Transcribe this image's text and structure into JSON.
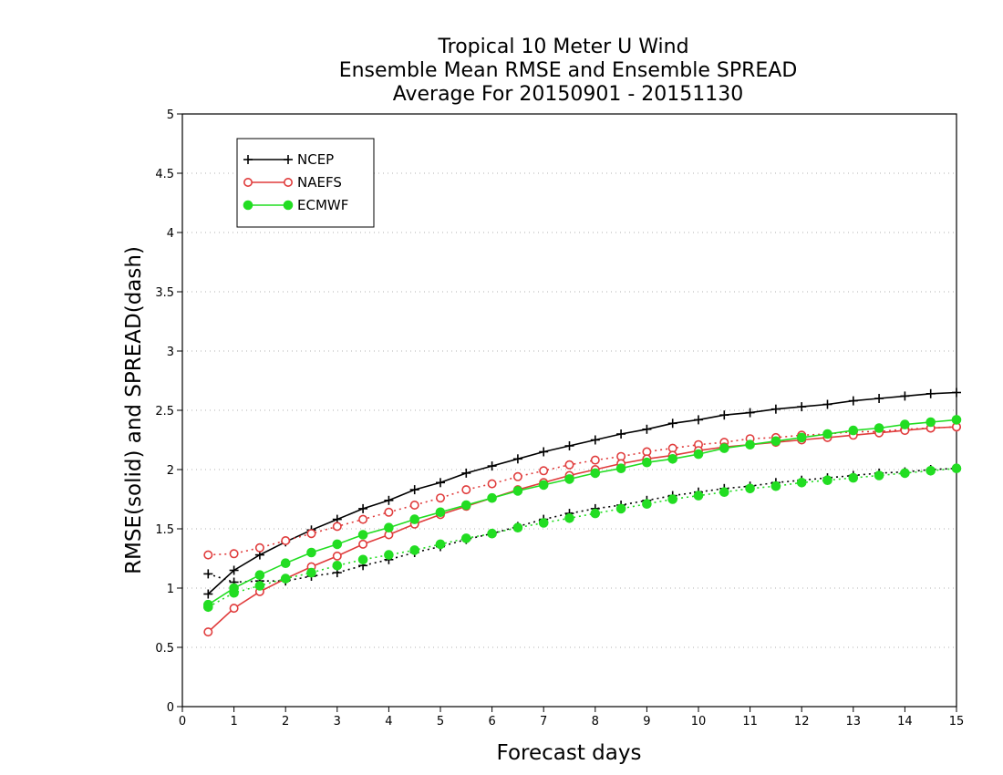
{
  "chart_data": {
    "type": "line",
    "title_lines": [
      "Tropical 10 Meter U Wind",
      "Ensemble Mean RMSE and Ensemble SPREAD",
      "Average For 20150901 - 20151130"
    ],
    "xlabel": "Forecast days",
    "ylabel": "RMSE(solid) and SPREAD(dash)",
    "xlim": [
      0,
      15
    ],
    "ylim": [
      0,
      5
    ],
    "xticks": [
      "0",
      "1",
      "2",
      "3",
      "4",
      "5",
      "6",
      "7",
      "8",
      "9",
      "10",
      "11",
      "12",
      "13",
      "14",
      "15"
    ],
    "yticks": [
      "0",
      "0.5",
      "1",
      "1.5",
      "2",
      "2.5",
      "3",
      "3.5",
      "4",
      "4.5",
      "5"
    ],
    "grid": true,
    "legend_position": "top-left",
    "x": [
      0.5,
      1,
      1.5,
      2,
      2.5,
      3,
      3.5,
      4,
      4.5,
      5,
      5.5,
      6,
      6.5,
      7,
      7.5,
      8,
      8.5,
      9,
      9.5,
      10,
      10.5,
      11,
      11.5,
      12,
      12.5,
      13,
      13.5,
      14,
      14.5,
      15
    ],
    "series": [
      {
        "name": "NCEP",
        "color": "#000000",
        "marker": "plus",
        "rmse": [
          0.95,
          1.15,
          1.28,
          1.39,
          1.49,
          1.58,
          1.67,
          1.74,
          1.83,
          1.89,
          1.97,
          2.03,
          2.09,
          2.15,
          2.2,
          2.25,
          2.3,
          2.34,
          2.39,
          2.42,
          2.46,
          2.48,
          2.51,
          2.53,
          2.55,
          2.58,
          2.6,
          2.62,
          2.64,
          2.65
        ],
        "spread": [
          1.12,
          1.05,
          1.06,
          1.06,
          1.1,
          1.13,
          1.19,
          1.24,
          1.3,
          1.35,
          1.41,
          1.46,
          1.52,
          1.58,
          1.63,
          1.67,
          1.7,
          1.74,
          1.78,
          1.81,
          1.84,
          1.86,
          1.89,
          1.91,
          1.93,
          1.95,
          1.97,
          1.98,
          2.0,
          2.01
        ]
      },
      {
        "name": "NAEFS",
        "color": "#e03c3c",
        "marker": "open-circle",
        "rmse": [
          0.63,
          0.83,
          0.97,
          1.08,
          1.18,
          1.27,
          1.37,
          1.45,
          1.54,
          1.62,
          1.69,
          1.76,
          1.83,
          1.89,
          1.95,
          2.0,
          2.05,
          2.09,
          2.12,
          2.16,
          2.19,
          2.21,
          2.23,
          2.25,
          2.27,
          2.29,
          2.31,
          2.33,
          2.35,
          2.36
        ],
        "spread": [
          1.28,
          1.29,
          1.34,
          1.4,
          1.46,
          1.52,
          1.58,
          1.64,
          1.7,
          1.76,
          1.83,
          1.88,
          1.94,
          1.99,
          2.04,
          2.08,
          2.11,
          2.15,
          2.18,
          2.21,
          2.23,
          2.26,
          2.27,
          2.29,
          2.3,
          2.32,
          2.32,
          2.34,
          2.35,
          2.36
        ]
      },
      {
        "name": "ECMWF",
        "color": "#22dd22",
        "marker": "filled-circle",
        "rmse": [
          0.86,
          1.0,
          1.11,
          1.21,
          1.3,
          1.37,
          1.45,
          1.51,
          1.58,
          1.64,
          1.7,
          1.76,
          1.82,
          1.87,
          1.92,
          1.97,
          2.01,
          2.06,
          2.09,
          2.13,
          2.18,
          2.21,
          2.24,
          2.27,
          2.3,
          2.33,
          2.35,
          2.38,
          2.4,
          2.42
        ],
        "spread": [
          0.84,
          0.96,
          1.02,
          1.08,
          1.13,
          1.19,
          1.24,
          1.28,
          1.32,
          1.37,
          1.42,
          1.46,
          1.51,
          1.55,
          1.59,
          1.63,
          1.67,
          1.71,
          1.75,
          1.78,
          1.81,
          1.84,
          1.86,
          1.89,
          1.91,
          1.93,
          1.95,
          1.97,
          1.99,
          2.01
        ]
      }
    ]
  }
}
